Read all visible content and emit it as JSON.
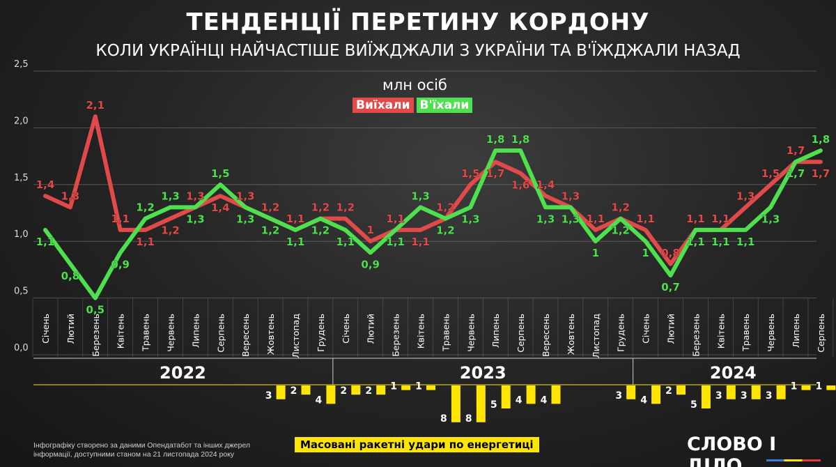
{
  "header": {
    "title": "ТЕНДЕНЦІЇ ПЕРЕТИНУ КОРДОНУ",
    "subtitle": "КОЛИ УКРАЇНЦІ НАЙЧАСТІШЕ ВИЇЖДЖАЛИ З УКРАЇНИ ТА В'ЇЖДЖАЛИ НАЗАД"
  },
  "unit_label": "млн осіб",
  "colors": {
    "left": "#e24a4a",
    "entered": "#4ee04e",
    "strikes": "#ffe600"
  },
  "chart_data": {
    "type": "line",
    "title": "ТЕНДЕНЦІЇ ПЕРЕТИНУ КОРДОНУ",
    "ylim": [
      0,
      2.5
    ],
    "yticks": [
      "0,0",
      "0,5",
      "1,0",
      "1,5",
      "2,0",
      "2,5"
    ],
    "grid": true,
    "legend_position": "top-center",
    "categories": [
      "Січень",
      "Лютий",
      "Березень",
      "Квітень",
      "Травень",
      "Червень",
      "Липень",
      "Серпень",
      "Вересень",
      "Жовтень",
      "Листопад",
      "Грудень",
      "Січень",
      "Лютий",
      "Березень",
      "Квітень",
      "Травень",
      "Червень",
      "Липень",
      "Серпень",
      "Вересень",
      "Жовтень",
      "Листопад",
      "Грудень",
      "Січень",
      "Лютий",
      "Березень",
      "Квітень",
      "Травень",
      "Червень",
      "Липень",
      "Серпень"
    ],
    "years": [
      {
        "label": "2022",
        "months": 12
      },
      {
        "label": "2023",
        "months": 12
      },
      {
        "label": "2024",
        "months": 8
      }
    ],
    "series": [
      {
        "name": "Виїхали",
        "values": [
          1.4,
          1.3,
          2.1,
          1.1,
          1.1,
          1.2,
          1.3,
          1.4,
          1.3,
          1.2,
          1.1,
          1.2,
          1.2,
          1.0,
          1.1,
          1.1,
          1.2,
          1.5,
          1.7,
          1.6,
          1.4,
          1.3,
          1.1,
          1.2,
          1.1,
          0.8,
          1.1,
          1.1,
          1.3,
          1.5,
          1.7,
          1.7
        ],
        "labels": [
          "1,4",
          "1,3",
          "2,1",
          "1,1",
          "1,1",
          "1,2",
          "1,3",
          "1,4",
          "1,3",
          "1,2",
          "1,1",
          "1,2",
          "1,2",
          "1",
          "1,1",
          "1,1",
          "1,2",
          "1,5",
          "1,7",
          "1,6",
          "1,4",
          "1,3",
          "1,1",
          "1,2",
          "1,1",
          "0,8",
          "1,1",
          "1,1",
          "1,3",
          "1,5",
          "1,7",
          "1,7"
        ]
      },
      {
        "name": "В'їхали",
        "values": [
          1.1,
          0.8,
          0.5,
          0.9,
          1.2,
          1.3,
          1.3,
          1.5,
          1.3,
          1.2,
          1.1,
          1.2,
          1.1,
          0.9,
          1.1,
          1.3,
          1.2,
          1.3,
          1.8,
          1.8,
          1.3,
          1.3,
          1.0,
          1.2,
          1.0,
          0.7,
          1.1,
          1.1,
          1.1,
          1.3,
          1.7,
          1.8
        ],
        "labels": [
          "1,1",
          "0,8",
          "0,5",
          "0,9",
          "1,2",
          "1,3",
          "1,3",
          "1,5",
          "1,3",
          "1,2",
          "1,1",
          "1,2",
          "1,1",
          "0,9",
          "1,1",
          "1,3",
          "1,2",
          "1,3",
          "1,8",
          "1,8",
          "1,3",
          "1,3",
          "1",
          "1,2",
          "1",
          "0,7",
          "1,1",
          "1,1",
          "1,1",
          "1,3",
          "1,7",
          "1,8"
        ]
      }
    ],
    "strikes": {
      "name": "Масовані ракетні удари по енергетиці",
      "values": [
        0,
        0,
        0,
        0,
        0,
        0,
        0,
        0,
        0,
        3,
        2,
        4,
        2,
        2,
        1,
        1,
        8,
        8,
        5,
        4,
        4,
        0,
        0,
        3,
        4,
        2,
        5,
        3,
        3,
        3,
        1,
        1
      ]
    }
  },
  "footer": {
    "source": "Інфографіку створено за даними Опендатабот та інших джерел інформації, доступними станом на 21 листопада 2024 року",
    "brand": "СЛОВО І ДІЛО"
  }
}
